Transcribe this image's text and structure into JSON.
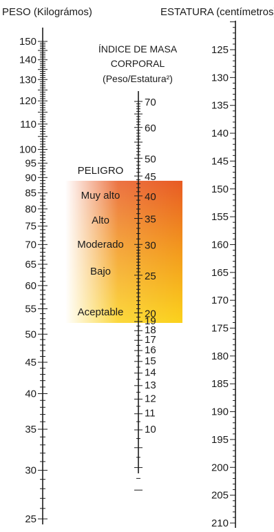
{
  "titles": {
    "weight": "PESO (Kilográmos)",
    "height": "ESTATURA (centímetros)",
    "bmi_line1": "ÍNDICE DE MASA",
    "bmi_line2": "CORPORAL",
    "bmi_line3": "(Peso/Estatura²)"
  },
  "risk": {
    "header": "PELIGRO",
    "levels": [
      "Muy alto",
      "Alto",
      "Moderado",
      "Bajo",
      "Aceptable"
    ]
  },
  "colors": {
    "band_top": "#e85a23",
    "band_mid": "#f39a1c",
    "band_bottom": "#fbd21c"
  },
  "weight_scale": {
    "labels": [
      "150",
      "140",
      "130",
      "120",
      "110",
      "100",
      "95",
      "90",
      "85",
      "80",
      "75",
      "70",
      "65",
      "60",
      "55",
      "50",
      "45",
      "40",
      "35",
      "30",
      "25"
    ]
  },
  "bmi_scale": {
    "labels": [
      "70",
      "60",
      "50",
      "45",
      "40",
      "35",
      "30",
      "25",
      "20",
      "19",
      "18",
      "17",
      "16",
      "15",
      "14",
      "13",
      "12",
      "11",
      "10"
    ]
  },
  "height_scale": {
    "labels": [
      "125",
      "130",
      "135",
      "140",
      "145",
      "150",
      "155",
      "160",
      "165",
      "170",
      "175",
      "180",
      "185",
      "190",
      "195",
      "200",
      "205",
      "210"
    ]
  }
}
